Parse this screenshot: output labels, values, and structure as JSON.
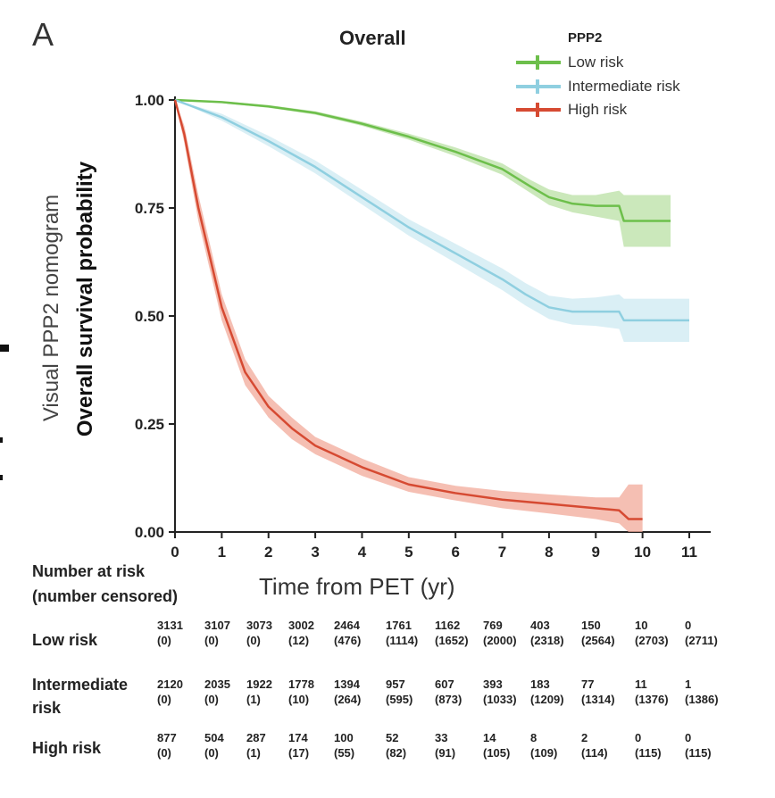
{
  "panel_letter": "A",
  "chart_data": {
    "type": "line",
    "title": "Overall",
    "xlabel": "Time from PET (yr)",
    "ylabel": "Overall survival probability",
    "ylabel_secondary": "Visual PPP2 nomogram",
    "xlim": [
      0,
      11
    ],
    "ylim": [
      0,
      1
    ],
    "x_ticks": [
      "0",
      "1",
      "2",
      "3",
      "4",
      "5",
      "6",
      "7",
      "8",
      "9",
      "10",
      "11"
    ],
    "y_ticks": [
      "0.00",
      "0.25",
      "0.50",
      "0.75",
      "1.00"
    ],
    "grid": false,
    "legend": {
      "title": "PPP2",
      "position": "top-right"
    },
    "series": [
      {
        "name": "Low risk",
        "color": "#6dbf4b",
        "band_color": "#b9e0a4",
        "x": [
          0,
          1,
          2,
          3,
          4,
          5,
          6,
          7,
          7.6,
          8,
          8.5,
          9,
          9.5,
          9.6,
          10,
          10.6
        ],
        "y": [
          1.0,
          0.995,
          0.985,
          0.97,
          0.945,
          0.915,
          0.88,
          0.84,
          0.8,
          0.775,
          0.76,
          0.755,
          0.755,
          0.72,
          0.72,
          0.72
        ],
        "ci_low": [
          1.0,
          0.993,
          0.982,
          0.966,
          0.94,
          0.908,
          0.87,
          0.827,
          0.785,
          0.757,
          0.74,
          0.73,
          0.72,
          0.66,
          0.66,
          0.66
        ],
        "ci_high": [
          1.0,
          0.997,
          0.988,
          0.974,
          0.95,
          0.922,
          0.89,
          0.853,
          0.815,
          0.793,
          0.78,
          0.78,
          0.79,
          0.78,
          0.78,
          0.78
        ]
      },
      {
        "name": "Intermediate risk",
        "color": "#8fcfe0",
        "band_color": "#cdeaf2",
        "x": [
          0,
          1,
          2,
          3,
          4,
          5,
          6,
          7,
          7.5,
          8,
          8.5,
          9,
          9.5,
          9.6,
          10,
          11
        ],
        "y": [
          1.0,
          0.96,
          0.905,
          0.845,
          0.775,
          0.705,
          0.645,
          0.585,
          0.55,
          0.52,
          0.51,
          0.51,
          0.51,
          0.49,
          0.49,
          0.49
        ],
        "ci_low": [
          1.0,
          0.952,
          0.893,
          0.83,
          0.758,
          0.686,
          0.623,
          0.56,
          0.524,
          0.493,
          0.48,
          0.477,
          0.47,
          0.44,
          0.44,
          0.44
        ],
        "ci_high": [
          1.0,
          0.968,
          0.917,
          0.86,
          0.792,
          0.724,
          0.667,
          0.61,
          0.576,
          0.547,
          0.54,
          0.543,
          0.55,
          0.54,
          0.54,
          0.54
        ]
      },
      {
        "name": "High risk",
        "color": "#d64a32",
        "band_color": "#f1a99a",
        "x": [
          0,
          0.2,
          0.5,
          1,
          1.5,
          2,
          2.5,
          3,
          4,
          5,
          6,
          7,
          8,
          9,
          9.5,
          9.7,
          10
        ],
        "y": [
          1.0,
          0.92,
          0.75,
          0.52,
          0.37,
          0.29,
          0.24,
          0.2,
          0.15,
          0.11,
          0.09,
          0.075,
          0.065,
          0.055,
          0.05,
          0.03,
          0.03
        ],
        "ci_low": [
          1.0,
          0.9,
          0.72,
          0.49,
          0.34,
          0.265,
          0.215,
          0.18,
          0.13,
          0.093,
          0.073,
          0.055,
          0.043,
          0.03,
          0.02,
          0.0,
          0.0
        ],
        "ci_high": [
          1.0,
          0.94,
          0.78,
          0.55,
          0.4,
          0.315,
          0.265,
          0.22,
          0.17,
          0.127,
          0.107,
          0.095,
          0.087,
          0.08,
          0.08,
          0.11,
          0.11
        ]
      }
    ]
  },
  "risk_table": {
    "header_line1": "Number at risk",
    "header_line2": "(number censored)",
    "rows": [
      {
        "label_lines": [
          "Low risk"
        ],
        "at_risk": [
          "3131",
          "3107",
          "3073",
          "3002",
          "2464",
          "1761",
          "1162",
          "769",
          "403",
          "150",
          "10",
          "0"
        ],
        "censored": [
          "(0)",
          "(0)",
          "(0)",
          "(12)",
          "(476)",
          "(1114)",
          "(1652)",
          "(2000)",
          "(2318)",
          "(2564)",
          "(2703)",
          "(2711)"
        ]
      },
      {
        "label_lines": [
          "Intermediate",
          "risk"
        ],
        "at_risk": [
          "2120",
          "2035",
          "1922",
          "1778",
          "1394",
          "957",
          "607",
          "393",
          "183",
          "77",
          "11",
          "1"
        ],
        "censored": [
          "(0)",
          "(0)",
          "(1)",
          "(10)",
          "(264)",
          "(595)",
          "(873)",
          "(1033)",
          "(1209)",
          "(1314)",
          "(1376)",
          "(1386)"
        ]
      },
      {
        "label_lines": [
          "High risk"
        ],
        "at_risk": [
          "877",
          "504",
          "287",
          "174",
          "100",
          "52",
          "33",
          "14",
          "8",
          "2",
          "0",
          "0"
        ],
        "censored": [
          "(0)",
          "(0)",
          "(1)",
          "(17)",
          "(55)",
          "(82)",
          "(91)",
          "(105)",
          "(109)",
          "(114)",
          "(115)",
          "(115)"
        ]
      }
    ]
  }
}
